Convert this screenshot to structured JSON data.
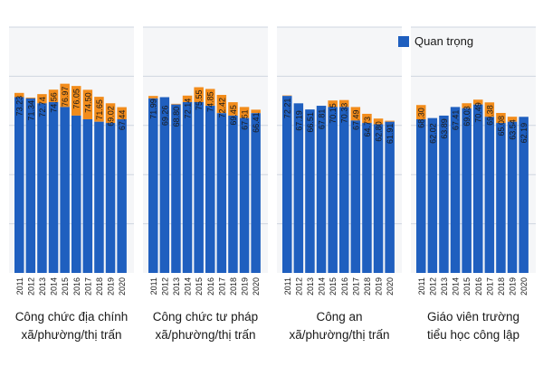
{
  "chart_data": {
    "type": "bar",
    "stacked": true,
    "legend": {
      "position": "top-right",
      "entries": [
        "Quan trọng"
      ]
    },
    "colors": {
      "lower": "#1f5fbf",
      "upper": "#f28c1b",
      "grid": "#cfd6e0",
      "text": "#1a1a1a",
      "background": "#f5f6f8"
    },
    "categories": [
      "2011",
      "2012",
      "2013",
      "2014",
      "2015",
      "2016",
      "2017",
      "2018",
      "2019",
      "2020"
    ],
    "grid": true,
    "ylim": [
      0,
      100
    ],
    "groups": [
      {
        "label_lines": [
          "Công chức địa chính",
          "xã/phường/thị trấn"
        ],
        "lower": [
          71.5,
          71.0,
          69.0,
          69.5,
          67.5,
          64.0,
          62.5,
          61.5,
          61.0,
          62.5
        ],
        "total_labels": [
          "73.23",
          "71.34",
          "72.74",
          "74.56",
          "76.97",
          "76.05",
          "74.50",
          "71.65",
          "69.02",
          "67.44"
        ],
        "totals": [
          73.23,
          71.34,
          72.74,
          74.56,
          76.97,
          76.05,
          74.5,
          71.65,
          69.02,
          67.44
        ]
      },
      {
        "label_lines": [
          "Công chức tư pháp",
          "xã/phường/thị trấn"
        ],
        "lower": [
          71.0,
          71.5,
          68.5,
          69.5,
          69.5,
          68.0,
          65.0,
          64.0,
          63.0,
          65.0
        ],
        "total_labels": [
          "71.99",
          "69.26",
          "68.80",
          "72.14",
          "75.55",
          "74.85",
          "72.42",
          "69.45",
          "67.51",
          "66.41"
        ],
        "totals": [
          71.99,
          69.26,
          68.8,
          72.14,
          75.55,
          74.85,
          72.42,
          69.45,
          67.51,
          66.41
        ]
      },
      {
        "label_lines": [
          "Công an",
          "xã/phường/thị trấn"
        ],
        "lower": [
          72.0,
          69.0,
          66.5,
          68.0,
          67.5,
          67.5,
          62.0,
          61.0,
          60.5,
          61.5
        ],
        "total_labels": [
          "72.21",
          "67.19",
          "66.51",
          "67.81",
          "70.15",
          "70.33",
          "67.49",
          "64.73",
          "62.80",
          "61.91"
        ],
        "totals": [
          72.21,
          67.19,
          66.51,
          67.81,
          70.15,
          70.33,
          67.49,
          64.73,
          62.8,
          61.91
        ]
      },
      {
        "label_lines": [
          "Giáo viên trường",
          "tiểu học công lập"
        ],
        "lower": [
          62.5,
          63.0,
          64.0,
          67.5,
          67.0,
          68.5,
          63.5,
          61.0,
          61.5,
          63.5
        ],
        "total_labels": [
          "68.30",
          "62.02",
          "63.89",
          "67.41",
          "69.03",
          "70.49",
          "69.38",
          "65.08",
          "63.54",
          "62.19"
        ],
        "totals": [
          68.3,
          62.02,
          63.89,
          67.41,
          69.03,
          70.49,
          69.38,
          65.08,
          63.54,
          62.19
        ]
      }
    ]
  }
}
